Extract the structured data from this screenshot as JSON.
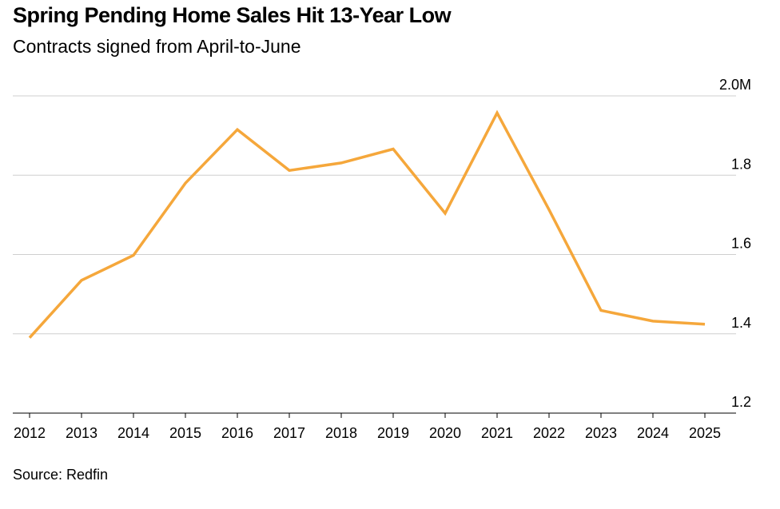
{
  "chart_data": {
    "type": "line",
    "title": "Spring Pending Home Sales Hit 13-Year Low",
    "subtitle": "Contracts signed from April-to-June",
    "source": "Source: Redfin",
    "xlabel": "",
    "ylabel": "",
    "categories": [
      "2012",
      "2013",
      "2014",
      "2015",
      "2016",
      "2017",
      "2018",
      "2019",
      "2020",
      "2021",
      "2022",
      "2023",
      "2024",
      "2025"
    ],
    "series": [
      {
        "name": "Pending home sales",
        "color": "#f5a73b",
        "values": [
          1.39,
          1.535,
          1.598,
          1.78,
          1.915,
          1.812,
          1.831,
          1.866,
          1.704,
          1.957,
          1.713,
          1.459,
          1.432,
          1.424
        ]
      }
    ],
    "ylim": [
      1.2,
      2.0
    ],
    "yticks": [
      1.2,
      1.4,
      1.6,
      1.8,
      2.0
    ],
    "ytick_labels": [
      "1.2",
      "1.4",
      "1.6",
      "1.8",
      "2.0M"
    ],
    "grid": true,
    "y_axis_side": "right"
  }
}
